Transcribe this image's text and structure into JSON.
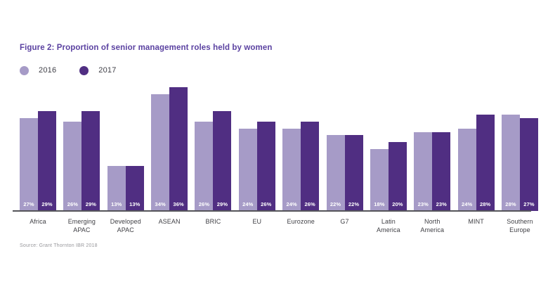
{
  "title": "Figure 2: Proportion of senior management roles held by women",
  "legend": {
    "items": [
      {
        "label": "2016",
        "color": "#A69BC7"
      },
      {
        "label": "2017",
        "color": "#502E82"
      }
    ]
  },
  "source": "Source: Grant Thornton IBR 2018",
  "colors": {
    "title": "#5B42A1",
    "series_2016": "#A69BC7",
    "series_2017": "#502E82",
    "axis": "#55555A",
    "value_label": "#ffffff",
    "category_label": "#3F3F44"
  },
  "chart_data": {
    "type": "bar",
    "title": "Figure 2: Proportion of senior management roles held by women",
    "categories": [
      "Africa",
      "Emerging APAC",
      "Developed APAC",
      "ASEAN",
      "BRIC",
      "EU",
      "Eurozone",
      "G7",
      "Latin America",
      "North America",
      "MINT",
      "Southern Europe"
    ],
    "series": [
      {
        "name": "2016",
        "color": "#A69BC7",
        "values": [
          27,
          26,
          13,
          34,
          26,
          24,
          24,
          22,
          18,
          23,
          24,
          28
        ]
      },
      {
        "name": "2017",
        "color": "#502E82",
        "values": [
          29,
          29,
          13,
          36,
          29,
          26,
          26,
          22,
          20,
          23,
          28,
          27
        ]
      }
    ],
    "value_suffix": "%",
    "ylim": [
      0,
      36
    ],
    "ylabel": "",
    "xlabel": "",
    "grid": false,
    "legend_position": "top-left",
    "value_labels": "inside-bottom"
  }
}
